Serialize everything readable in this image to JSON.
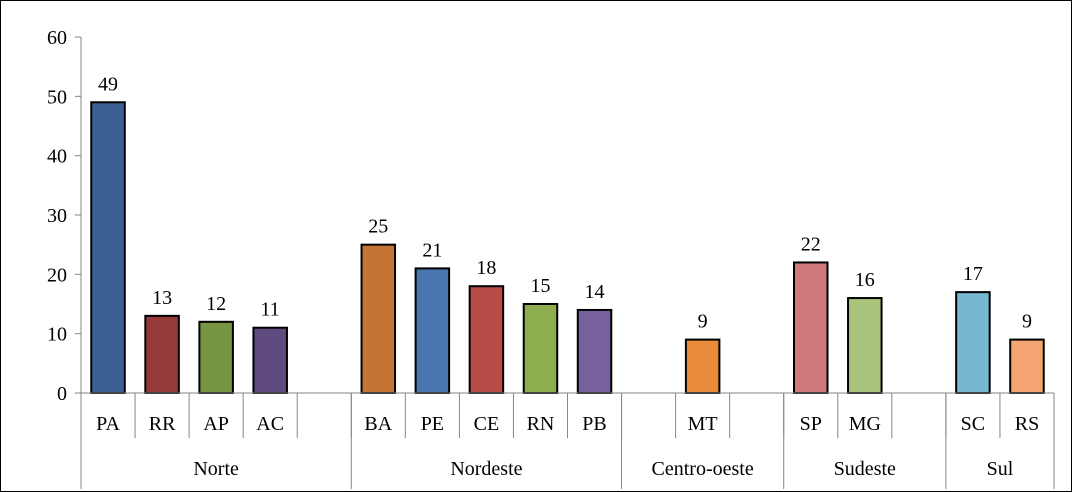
{
  "chart_data": {
    "type": "bar",
    "title": "",
    "xlabel": "",
    "ylabel": "",
    "ylim": [
      0,
      60
    ],
    "yticks": [
      0,
      10,
      20,
      30,
      40,
      50,
      60
    ],
    "grid": false,
    "legend": "none",
    "data_labels": true,
    "groups": [
      {
        "name": "Norte",
        "categories": [
          "PA",
          "RR",
          "AP",
          "AC",
          ""
        ],
        "values": [
          49,
          13,
          12,
          11,
          null
        ],
        "colors": [
          "#3b5f93",
          "#953a3a",
          "#779540",
          "#5e4a7e",
          null
        ]
      },
      {
        "name": "Nordeste",
        "categories": [
          "BA",
          "PE",
          "CE",
          "RN",
          "PB"
        ],
        "values": [
          25,
          21,
          18,
          15,
          14
        ],
        "colors": [
          "#c47434",
          "#4a76b0",
          "#b84a48",
          "#8ead4f",
          "#76619c"
        ]
      },
      {
        "name": "Centro-oeste",
        "categories": [
          "",
          "MT",
          ""
        ],
        "values": [
          null,
          9,
          null
        ],
        "colors": [
          null,
          "#e98b3a",
          null
        ]
      },
      {
        "name": "Sudeste",
        "categories": [
          "SP",
          "MG",
          ""
        ],
        "values": [
          22,
          16,
          null
        ],
        "colors": [
          "#cf7b7b",
          "#aac57b",
          null
        ]
      },
      {
        "name": "Sul",
        "categories": [
          "SC",
          "RS"
        ],
        "values": [
          17,
          9
        ],
        "colors": [
          "#77b7cf",
          "#f5a572"
        ]
      }
    ]
  }
}
